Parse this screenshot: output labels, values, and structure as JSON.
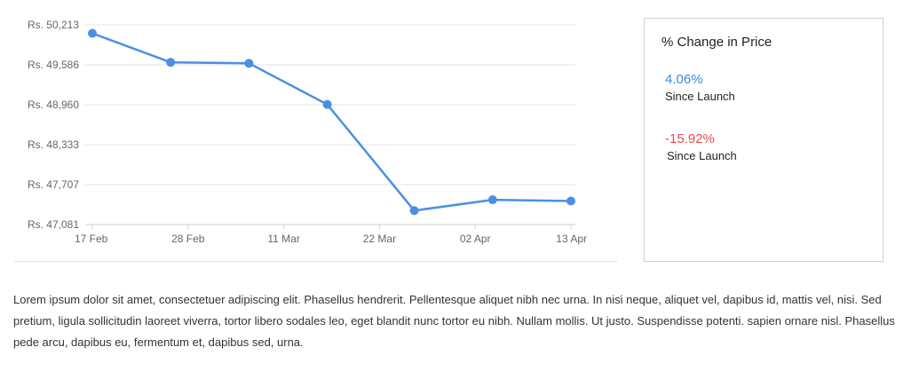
{
  "chart_data": {
    "type": "line",
    "title": "",
    "xlabel": "",
    "ylabel": "",
    "x_tick_labels": [
      "17 Feb",
      "28 Feb",
      "11 Mar",
      "22 Mar",
      "02 Apr",
      "13 Apr"
    ],
    "x_ticks": [
      "2021-02-17",
      "2021-02-28",
      "2021-03-11",
      "2021-03-22",
      "2021-04-02",
      "2021-04-13"
    ],
    "y_tick_labels": [
      "Rs. 47,081",
      "Rs. 47,707",
      "Rs. 48,333",
      "Rs. 48,960",
      "Rs. 49,586",
      "Rs. 50,213"
    ],
    "y_ticks": [
      47081,
      47707,
      48333,
      48960,
      49586,
      50213
    ],
    "ylim": [
      47081,
      50213
    ],
    "xlim": [
      "2021-02-17",
      "2021-04-13"
    ],
    "grid": true,
    "series": [
      {
        "color": "#4a90e2",
        "x": [
          "2021-02-17",
          "2021-02-26",
          "2021-03-07",
          "2021-03-16",
          "2021-03-26",
          "2021-04-04",
          "2021-04-13"
        ],
        "values": [
          50080,
          49625,
          49610,
          48965,
          47300,
          47470,
          47450
        ]
      }
    ]
  },
  "price_card": {
    "title": "% Change in Price",
    "stats": [
      {
        "value": "4.06%",
        "label": "Since Launch",
        "color": "#3b8be0"
      },
      {
        "value": "-15.92%",
        "label": "Since Launch",
        "color": "#e84c4c"
      }
    ]
  },
  "description": "Lorem ipsum dolor sit amet, consectetuer adipiscing elit. Phasellus hendrerit. Pellentesque aliquet nibh nec urna. In nisi neque, aliquet vel, dapibus id, mattis vel, nisi. Sed pretium, ligula sollicitudin laoreet viverra, tortor libero sodales leo, eget blandit nunc tortor eu nibh. Nullam mollis. Ut justo. Suspendisse potenti. sapien ornare nisl. Phasellus pede arcu, dapibus eu, fermentum et, dapibus sed, urna."
}
